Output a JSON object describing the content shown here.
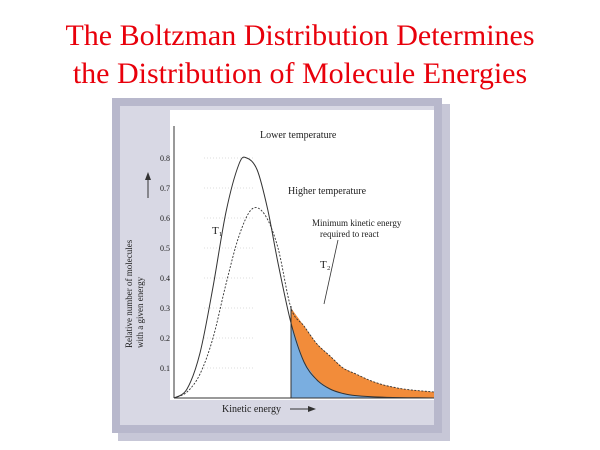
{
  "slide": {
    "title_line1": "The Boltzman Distribution Determines",
    "title_line2": "the Distribution of Molecule Energies",
    "title_color": "#e8000b"
  },
  "chart_data": {
    "type": "line",
    "xlabel": "Kinetic energy",
    "ylabel_line1": "Relative number of molecules",
    "ylabel_line2": "with a given energy",
    "yticks": [
      0.1,
      0.2,
      0.3,
      0.4,
      0.5,
      0.6,
      0.7,
      0.8
    ],
    "ylim": [
      0,
      0.9
    ],
    "xlim": [
      0,
      10
    ],
    "threshold_x": 4.5,
    "series": [
      {
        "name": "Lower temperature",
        "tag": "T1",
        "x": [
          0,
          0.5,
          1,
          1.5,
          2,
          2.5,
          2.8,
          3.2,
          3.6,
          4,
          4.5,
          5,
          5.5,
          6,
          6.5,
          7,
          8,
          9,
          10
        ],
        "y": [
          0,
          0.03,
          0.15,
          0.37,
          0.62,
          0.78,
          0.8,
          0.76,
          0.63,
          0.45,
          0.25,
          0.12,
          0.06,
          0.03,
          0.015,
          0.008,
          0.003,
          0.001,
          0
        ]
      },
      {
        "name": "Higher temperature",
        "tag": "T2",
        "x": [
          0,
          0.5,
          1,
          1.5,
          2,
          2.5,
          3,
          3.5,
          4,
          4.5,
          5,
          5.5,
          6,
          6.5,
          7,
          7.5,
          8,
          8.5,
          9,
          10
        ],
        "y": [
          0,
          0.02,
          0.08,
          0.2,
          0.38,
          0.54,
          0.63,
          0.61,
          0.5,
          0.3,
          0.24,
          0.18,
          0.14,
          0.1,
          0.08,
          0.06,
          0.045,
          0.035,
          0.028,
          0.02
        ]
      }
    ],
    "annotations": {
      "low_temp": "Lower temperature",
      "high_temp": "Higher temperature",
      "t1": "T₁",
      "t2": "T₂",
      "threshold_line1": "Minimum kinetic energy",
      "threshold_line2": "required to react"
    },
    "colors": {
      "frame": "#b8b8cc",
      "inner_frame": "#d8d8e4",
      "fill_high": "#f28c3a",
      "fill_low": "#7aaee0",
      "curve": "#333333",
      "text": "#222222"
    }
  }
}
